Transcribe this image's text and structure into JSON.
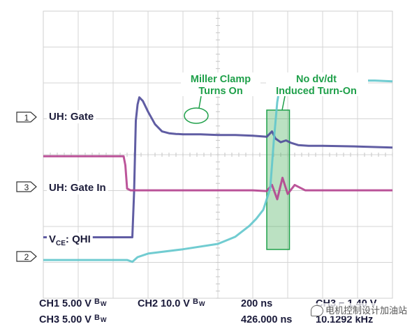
{
  "chart_data": {
    "type": "line",
    "title": "",
    "xlabel": "",
    "ylabel": "",
    "grid": true,
    "x_divisions": 10,
    "y_divisions": 8,
    "channels": [
      {
        "id": "1",
        "name": "UH: Gate",
        "color": "#4f4b99"
      },
      {
        "id": "3",
        "name": "UH: Gate In",
        "color": "#b5438f"
      },
      {
        "id": "2",
        "name_prefix": "V",
        "name_sub": "CE",
        "name_suffix": ": QHI",
        "color": "#62c7cc"
      }
    ],
    "series": [
      {
        "name": "UH: Gate",
        "channel": "1",
        "x_div": [
          0,
          2.55,
          2.6,
          2.65,
          2.7,
          2.75,
          2.85,
          3.0,
          3.2,
          3.4,
          3.6,
          3.8,
          4.0,
          4.5,
          5.0,
          5.5,
          6.0,
          6.4,
          6.55,
          6.65,
          6.8,
          6.95,
          7.1,
          7.3,
          7.6,
          8.0,
          9.0,
          10.0
        ],
        "y_div": [
          -3.35,
          -3.35,
          -2.1,
          -0.1,
          0.35,
          0.55,
          0.45,
          0.15,
          -0.2,
          -0.4,
          -0.45,
          -0.47,
          -0.48,
          -0.48,
          -0.5,
          -0.5,
          -0.52,
          -0.55,
          -0.4,
          -0.6,
          -0.7,
          -0.65,
          -0.72,
          -0.78,
          -0.8,
          -0.8,
          -0.82,
          -0.85
        ]
      },
      {
        "name": "UH: Gate In",
        "channel": "3",
        "x_div": [
          0,
          2.3,
          2.35,
          2.4,
          2.5,
          3.0,
          4.0,
          5.0,
          6.0,
          6.4,
          6.55,
          6.7,
          6.85,
          7.0,
          7.2,
          7.5,
          8.0,
          9.0,
          10.0
        ],
        "y_div": [
          0.85,
          0.85,
          0.6,
          -0.05,
          -0.1,
          -0.1,
          -0.1,
          -0.1,
          -0.1,
          -0.12,
          0.05,
          -0.35,
          0.25,
          -0.2,
          0.05,
          -0.1,
          -0.1,
          -0.1,
          -0.1
        ]
      },
      {
        "name": "VCE: QHI",
        "channel": "2",
        "x_div": [
          0,
          2.4,
          2.55,
          2.7,
          3.0,
          4.0,
          5.0,
          5.5,
          5.9,
          6.1,
          6.3,
          6.5,
          6.6,
          6.7,
          6.8,
          6.9,
          7.0,
          7.2,
          7.5,
          8.0,
          8.5,
          9.0,
          9.5,
          10.0
        ],
        "y_div": [
          -0.1,
          -0.1,
          -0.15,
          -0.02,
          0.08,
          0.2,
          0.35,
          0.55,
          0.85,
          1.05,
          1.3,
          1.9,
          3.2,
          4.3,
          4.9,
          5.05,
          5.0,
          4.95,
          4.88,
          4.85,
          4.9,
          4.9,
          4.9,
          4.88
        ]
      }
    ],
    "annotations": [
      {
        "lines": [
          "Miller Clamp",
          "Turns On"
        ],
        "color": "#1fa04a",
        "type": "ellipse"
      },
      {
        "lines": [
          "No dv/dt",
          "Induced Turn-On"
        ],
        "color": "#1fa04a",
        "type": "box",
        "x_div": [
          6.4,
          7.05
        ]
      }
    ],
    "settings": [
      {
        "row": 1,
        "items": [
          "CH1  5.00 V",
          "CH2  10.0 V",
          "200 ns",
          "CH3 ⌐  1.40 V"
        ]
      },
      {
        "row": 2,
        "items": [
          "CH3  5.00 V",
          "426.000 ns",
          "10.1292 kHz"
        ]
      }
    ],
    "bw_mark": "B",
    "bw_sub": "W"
  },
  "watermark": "电机控制设计加油站"
}
